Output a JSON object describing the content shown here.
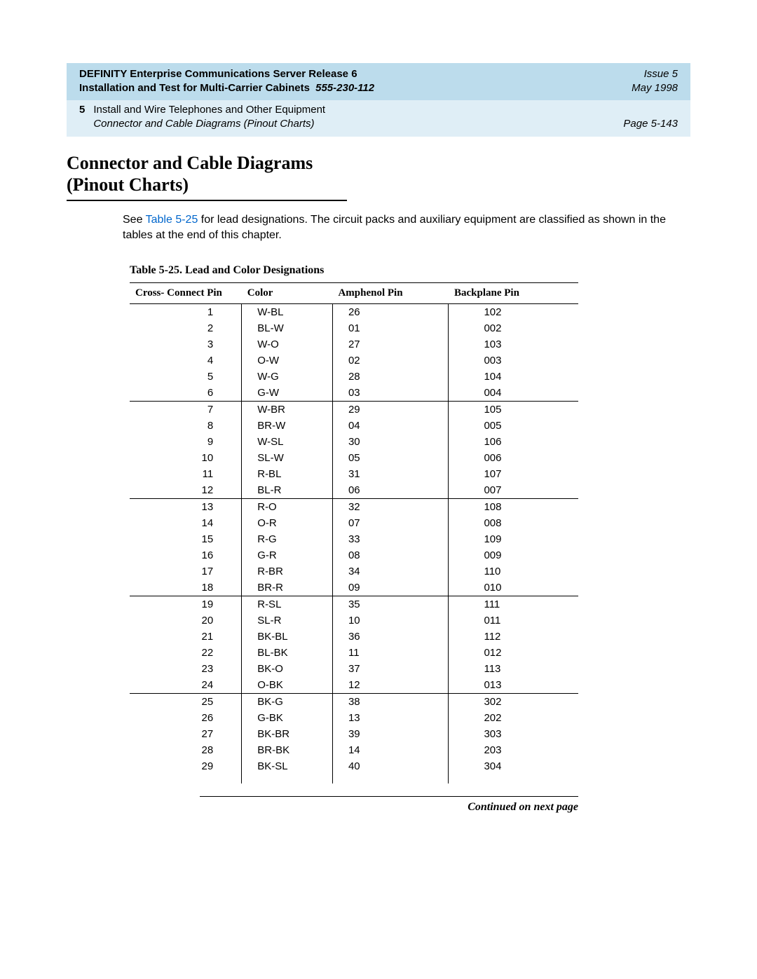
{
  "header": {
    "title_line1": "DEFINITY Enterprise Communications Server Release 6",
    "title_line2_a": "Installation and Test for Multi-Carrier Cabinets",
    "title_line2_b": "555-230-112",
    "issue": "Issue 5",
    "date": "May 1998",
    "chapter_num": "5",
    "chapter_title": "Install and Wire Telephones and Other Equipment",
    "section_italic": "Connector and Cable Diagrams (Pinout Charts)",
    "page": "Page 5-143"
  },
  "section": {
    "title_line1": "Connector and Cable Diagrams",
    "title_line2": "(Pinout Charts)",
    "body_pre": "See ",
    "body_link": "Table 5-25",
    "body_post": " for lead designations. The circuit packs and auxiliary equipment are classified as shown in the tables at the end of this chapter."
  },
  "table": {
    "caption": "Table 5-25.   Lead and Color Designations",
    "columns": [
      "Cross- Connect Pin",
      "Color",
      "Amphenol Pin",
      "Backplane Pin"
    ],
    "groups": [
      [
        [
          "1",
          "W-BL",
          "26",
          "102"
        ],
        [
          "2",
          "BL-W",
          "01",
          "002"
        ],
        [
          "3",
          "W-O",
          "27",
          "103"
        ],
        [
          "4",
          "O-W",
          "02",
          "003"
        ],
        [
          "5",
          "W-G",
          "28",
          "104"
        ],
        [
          "6",
          "G-W",
          "03",
          "004"
        ]
      ],
      [
        [
          "7",
          "W-BR",
          "29",
          "105"
        ],
        [
          "8",
          "BR-W",
          "04",
          "005"
        ],
        [
          "9",
          "W-SL",
          "30",
          "106"
        ],
        [
          "10",
          "SL-W",
          "05",
          "006"
        ],
        [
          "11",
          "R-BL",
          "31",
          "107"
        ],
        [
          "12",
          "BL-R",
          "06",
          "007"
        ]
      ],
      [
        [
          "13",
          "R-O",
          "32",
          "108"
        ],
        [
          "14",
          "O-R",
          "07",
          "008"
        ],
        [
          "15",
          "R-G",
          "33",
          "109"
        ],
        [
          "16",
          "G-R",
          "08",
          "009"
        ],
        [
          "17",
          "R-BR",
          "34",
          "110"
        ],
        [
          "18",
          "BR-R",
          "09",
          "010"
        ]
      ],
      [
        [
          "19",
          "R-SL",
          "35",
          "111"
        ],
        [
          "20",
          "SL-R",
          "10",
          "011"
        ],
        [
          "21",
          "BK-BL",
          "36",
          "112"
        ],
        [
          "22",
          "BL-BK",
          "11",
          "012"
        ],
        [
          "23",
          "BK-O",
          "37",
          "113"
        ],
        [
          "24",
          "O-BK",
          "12",
          "013"
        ]
      ],
      [
        [
          "25",
          "BK-G",
          "38",
          "302"
        ],
        [
          "26",
          "G-BK",
          "13",
          "202"
        ],
        [
          "27",
          "BK-BR",
          "39",
          "303"
        ],
        [
          "28",
          "BR-BK",
          "14",
          "203"
        ],
        [
          "29",
          "BK-SL",
          "40",
          "304"
        ]
      ]
    ],
    "continued": "Continued on next page"
  },
  "style": {
    "header_bg": "#bcdcec",
    "subheader_bg": "#dfeef6",
    "link_color": "#0066cc",
    "rule_color": "#000000",
    "body_fontsize": 16,
    "table_fontsize": 15
  }
}
